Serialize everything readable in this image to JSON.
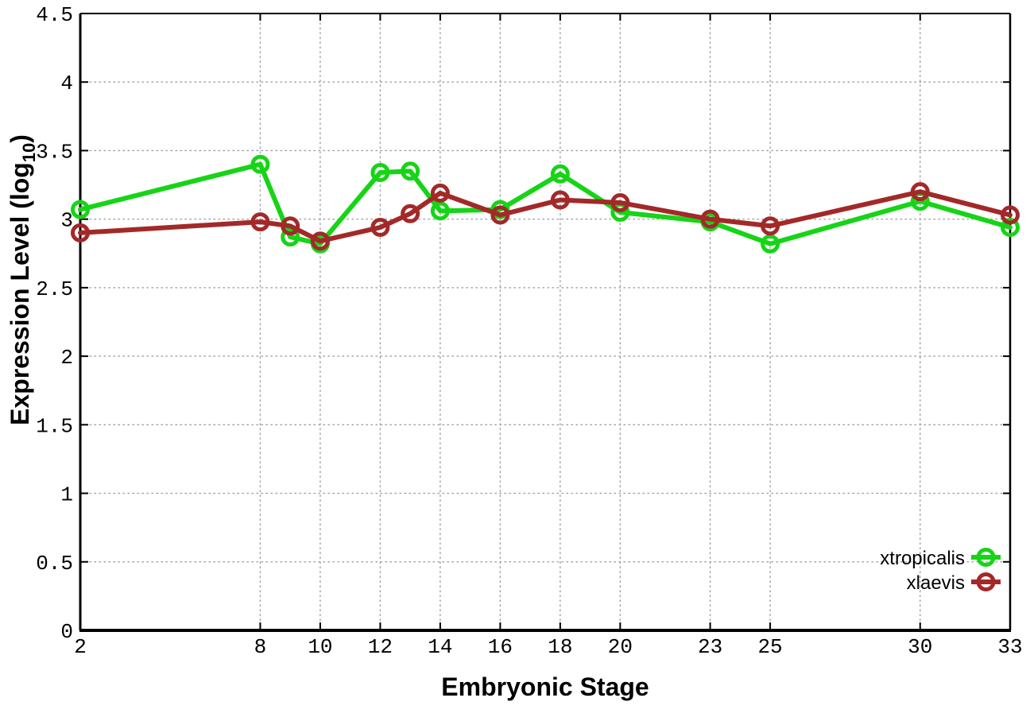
{
  "chart_data": {
    "type": "line",
    "title": "",
    "xlabel": "Embryonic Stage",
    "ylabel": {
      "main": "Expression Level (log",
      "sub": "10",
      "end": ")"
    },
    "xlim": [
      2,
      33
    ],
    "ylim": [
      0,
      4.5
    ],
    "grid": true,
    "legend_position": "bottom-right",
    "marker": "open-circle",
    "background": "#ffffff",
    "axis_color": "#000000",
    "grid_color": "#9e9ea8",
    "x": [
      2,
      8,
      9,
      10,
      12,
      13,
      14,
      16,
      18,
      20,
      23,
      25,
      30,
      33
    ],
    "xticks": [
      {
        "v": 2,
        "label": "2"
      },
      {
        "v": 8,
        "label": "8"
      },
      {
        "v": 10,
        "label": "10"
      },
      {
        "v": 12,
        "label": "12"
      },
      {
        "v": 14,
        "label": "14"
      },
      {
        "v": 16,
        "label": "16"
      },
      {
        "v": 18,
        "label": "18"
      },
      {
        "v": 20,
        "label": "20"
      },
      {
        "v": 23,
        "label": "23"
      },
      {
        "v": 25,
        "label": "25"
      },
      {
        "v": 30,
        "label": "30"
      },
      {
        "v": 33,
        "label": "33"
      }
    ],
    "yticks": [
      {
        "v": 0,
        "label": "0"
      },
      {
        "v": 0.5,
        "label": "0.5"
      },
      {
        "v": 1,
        "label": "1"
      },
      {
        "v": 1.5,
        "label": "1.5"
      },
      {
        "v": 2,
        "label": "2"
      },
      {
        "v": 2.5,
        "label": "2.5"
      },
      {
        "v": 3,
        "label": "3"
      },
      {
        "v": 3.5,
        "label": "3.5"
      },
      {
        "v": 4,
        "label": "4"
      },
      {
        "v": 4.5,
        "label": "4.5"
      }
    ],
    "series": [
      {
        "name": "xtropicalis",
        "color": "#16d416",
        "values": [
          3.07,
          3.4,
          2.87,
          2.82,
          3.34,
          3.35,
          3.06,
          3.07,
          3.33,
          3.05,
          2.98,
          2.82,
          3.13,
          2.94
        ]
      },
      {
        "name": "xlaevis",
        "color": "#a32929",
        "values": [
          2.9,
          2.98,
          2.95,
          2.84,
          2.94,
          3.04,
          3.19,
          3.03,
          3.14,
          3.12,
          3.0,
          2.95,
          3.2,
          3.03
        ]
      }
    ]
  }
}
